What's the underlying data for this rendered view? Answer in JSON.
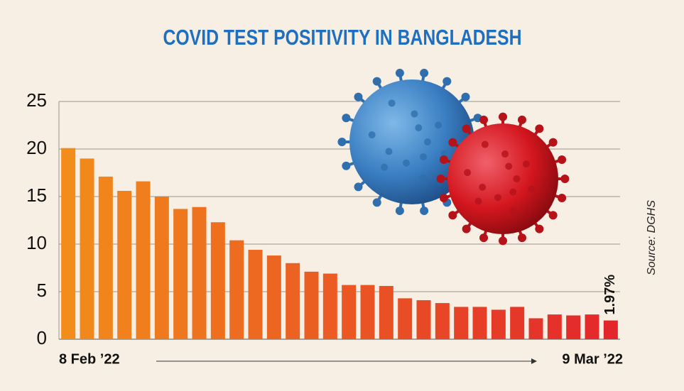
{
  "chart_data": {
    "type": "bar",
    "title": "COVID TEST POSITIVITY IN BANGLADESH",
    "source": "Source: DGHS",
    "categories": [
      "8 Feb ’22",
      null,
      null,
      null,
      null,
      null,
      null,
      null,
      null,
      null,
      null,
      null,
      null,
      null,
      null,
      null,
      null,
      null,
      null,
      null,
      null,
      null,
      null,
      null,
      null,
      null,
      null,
      null,
      null,
      "9 Mar ’22"
    ],
    "values": [
      20.1,
      19.0,
      17.1,
      15.6,
      16.6,
      15.0,
      13.7,
      13.9,
      12.3,
      10.4,
      9.4,
      8.8,
      8.0,
      7.1,
      6.9,
      5.7,
      5.7,
      5.6,
      4.3,
      4.1,
      3.8,
      3.4,
      3.4,
      3.1,
      3.4,
      2.2,
      2.6,
      2.5,
      2.6,
      1.97
    ],
    "value_labels": [
      null,
      null,
      null,
      null,
      null,
      null,
      null,
      null,
      null,
      null,
      null,
      null,
      null,
      null,
      null,
      null,
      null,
      null,
      null,
      null,
      null,
      null,
      null,
      null,
      null,
      null,
      null,
      null,
      null,
      "1.97%"
    ],
    "color_gradient": [
      "#f28c1b",
      "#e3262b"
    ],
    "ylim": [
      0,
      25
    ],
    "yticks": [
      0,
      5,
      10,
      15,
      20,
      25
    ],
    "grid": true
  }
}
